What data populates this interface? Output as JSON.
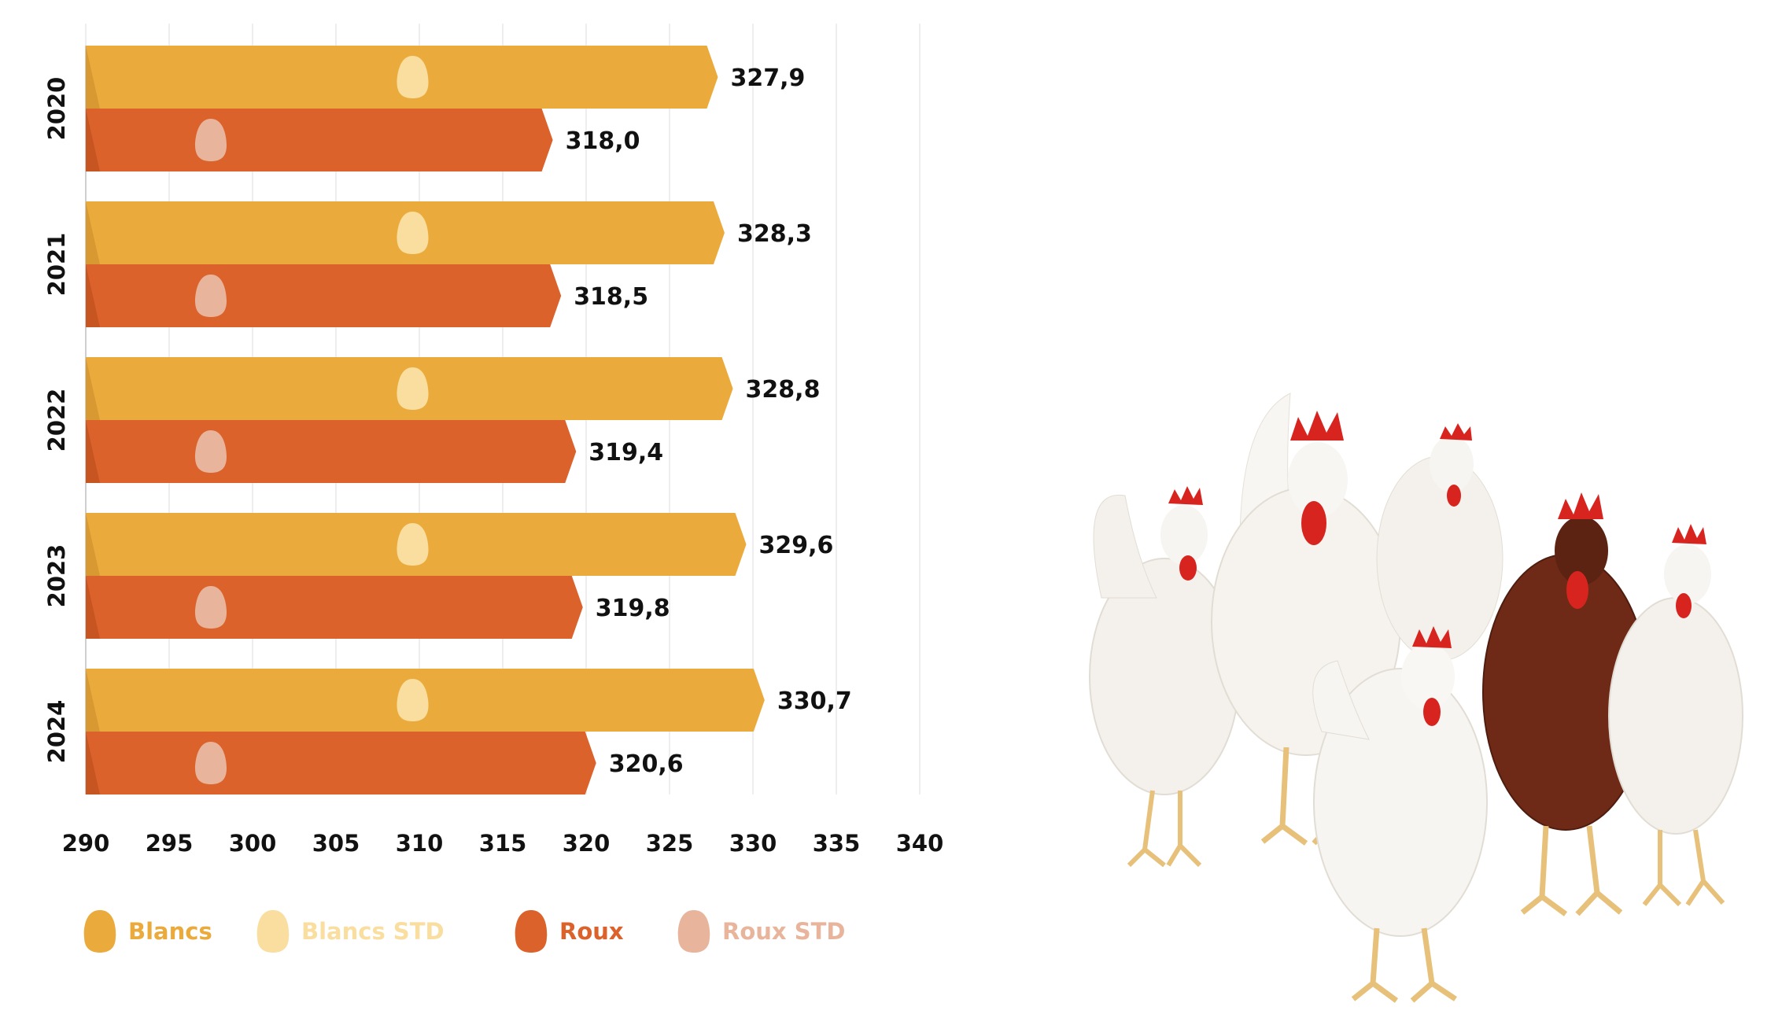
{
  "chart_data": {
    "type": "bar",
    "orientation": "horizontal",
    "categories": [
      "2020",
      "2021",
      "2022",
      "2023",
      "2024"
    ],
    "series": [
      {
        "name": "Blancs",
        "color": "#EBAB3C",
        "egg_color": "#F9DE9F",
        "values": [
          327.9,
          328.3,
          328.8,
          329.6,
          330.7
        ],
        "labels": [
          "327,9",
          "328,3",
          "328,8",
          "329,6",
          "330,7"
        ],
        "std_marker": 309.6
      },
      {
        "name": "Roux",
        "color": "#DC622C",
        "egg_color": "#E8B59C",
        "values": [
          318.0,
          318.5,
          319.4,
          319.8,
          320.6
        ],
        "labels": [
          "318,0",
          "318,5",
          "319,4",
          "319,8",
          "320,6"
        ],
        "std_marker": 297.5
      }
    ],
    "x_ticks": [
      "290",
      "295",
      "300",
      "305",
      "310",
      "315",
      "320",
      "325",
      "330",
      "335",
      "340"
    ],
    "xlim": [
      290,
      340
    ],
    "grid": true,
    "legend": [
      {
        "label": "Blancs",
        "color": "#EBAB3C"
      },
      {
        "label": "Blancs STD",
        "color": "#F9DE9F"
      },
      {
        "label": "Roux",
        "color": "#DC622C"
      },
      {
        "label": "Roux STD",
        "color": "#E8B59C"
      }
    ],
    "legend_position": "bottom",
    "illustration": "chickens"
  }
}
